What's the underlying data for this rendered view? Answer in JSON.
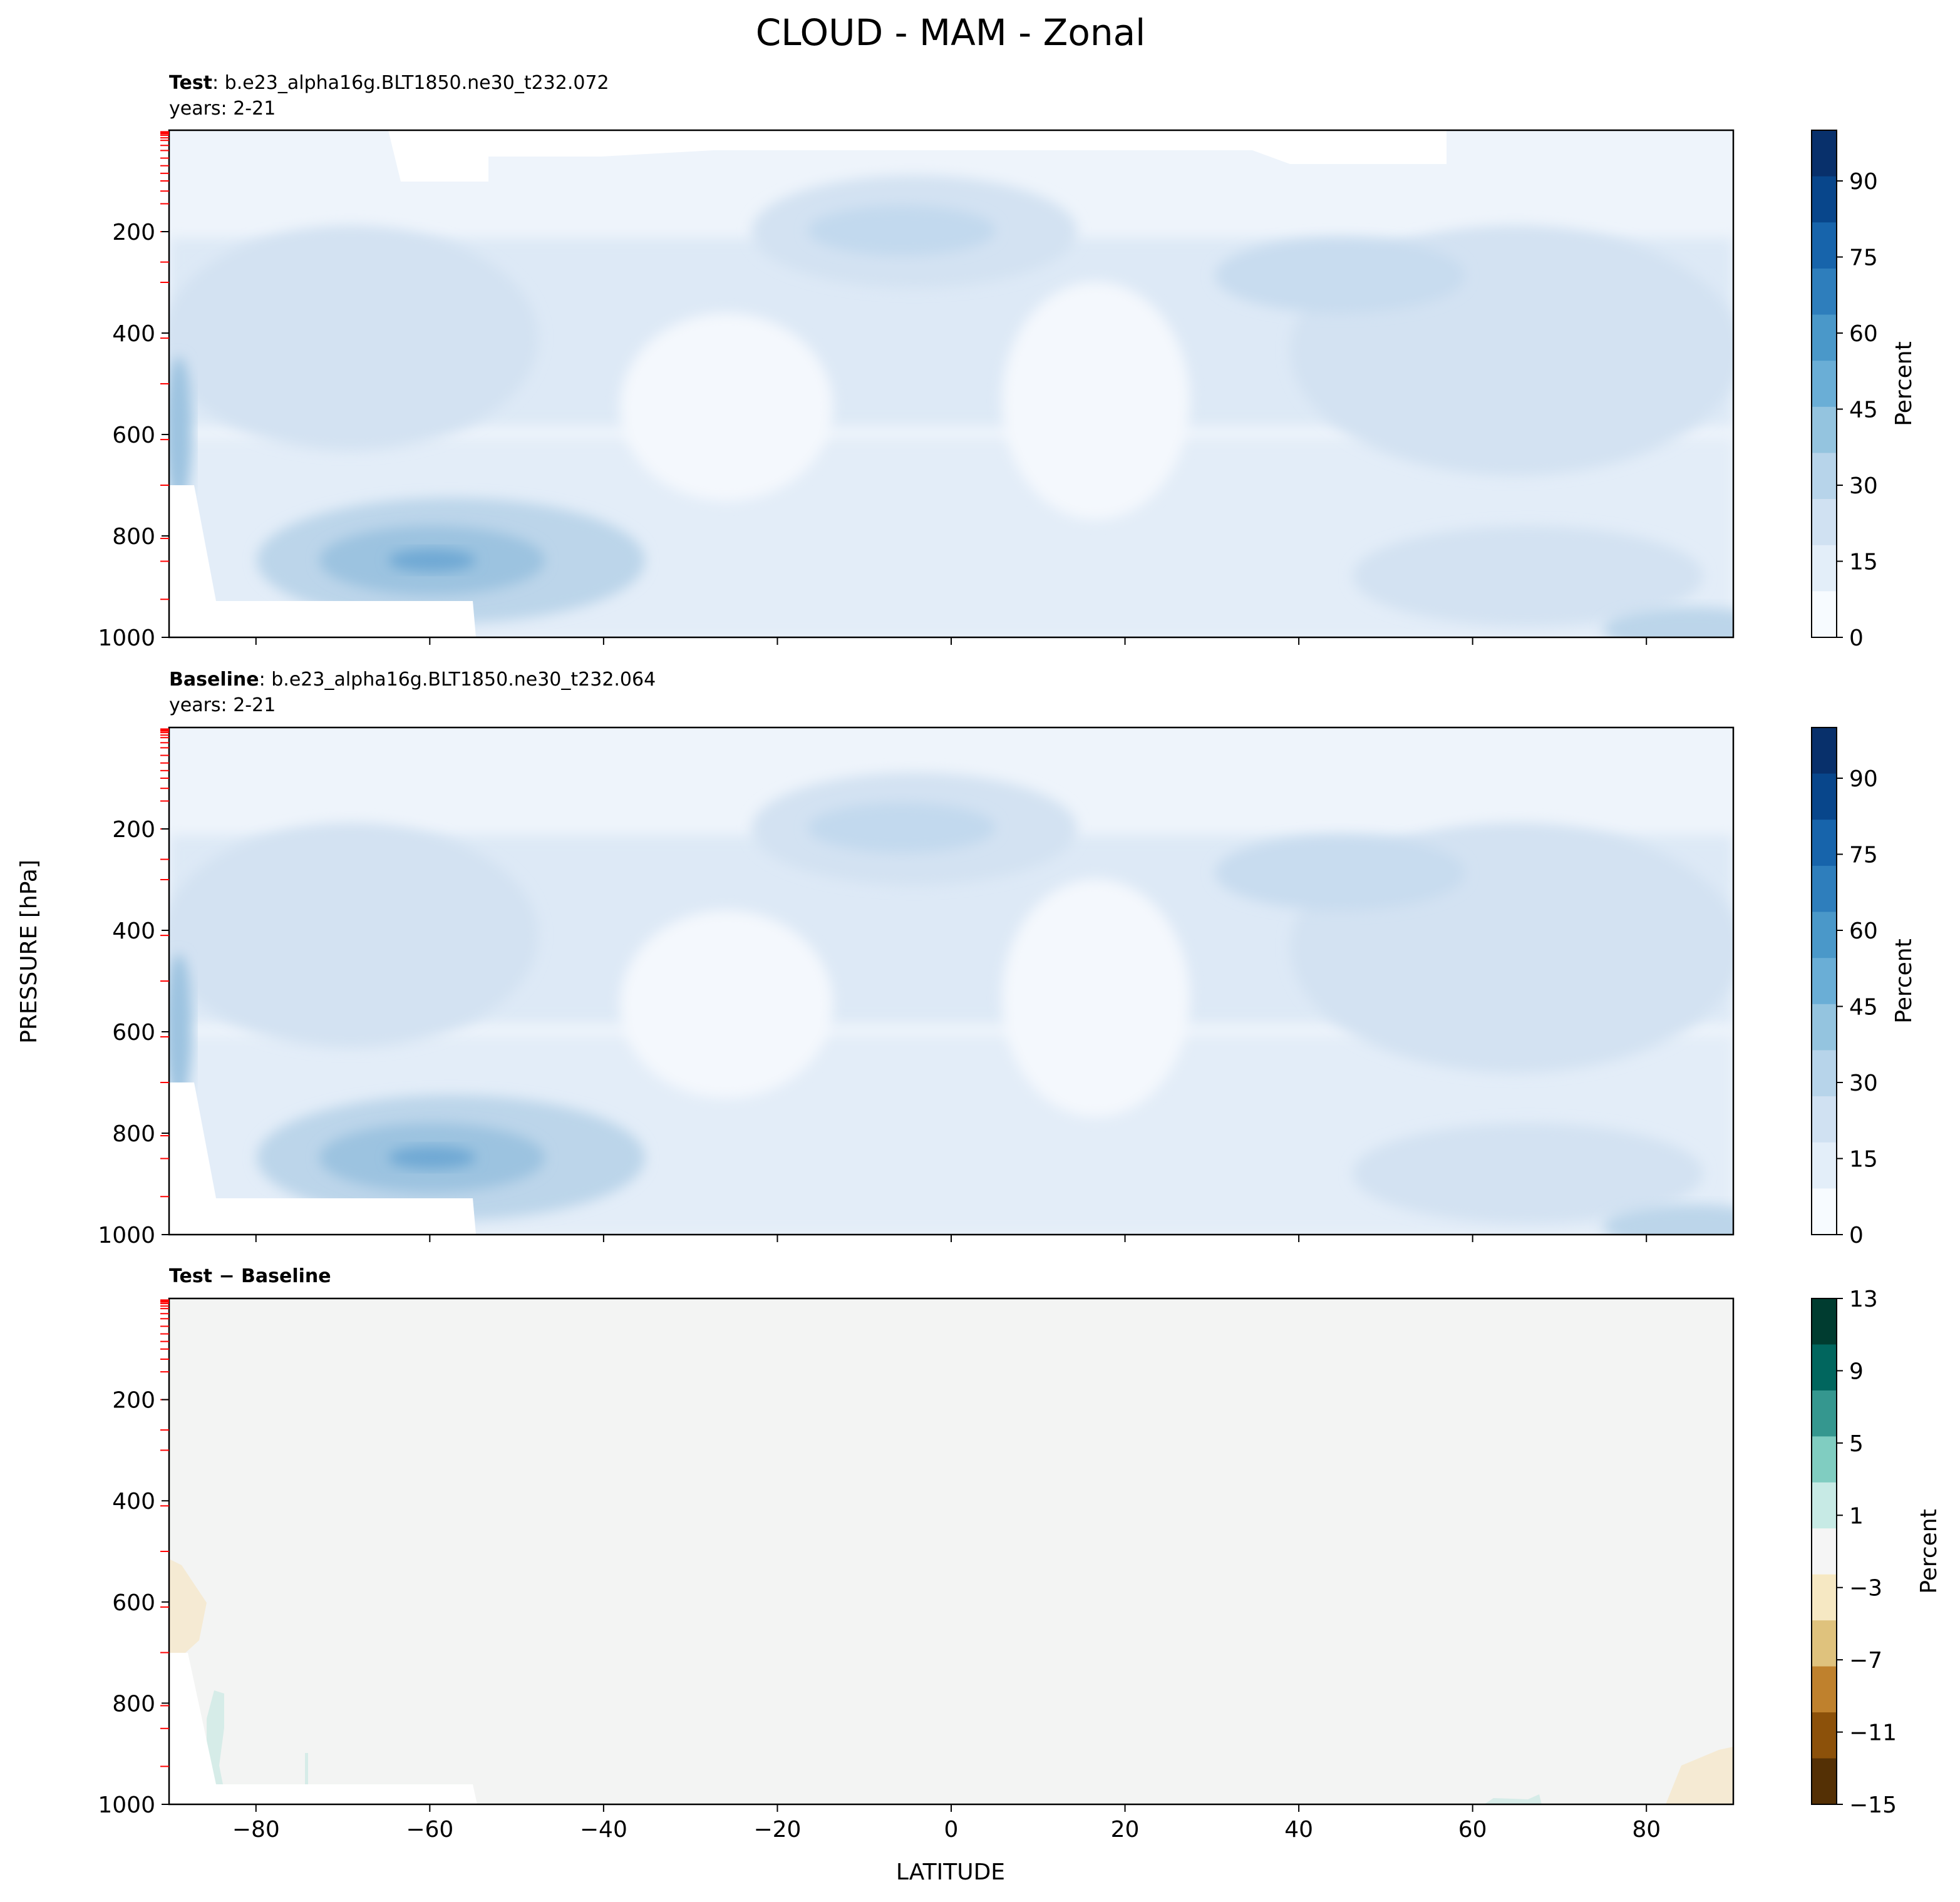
{
  "figure": {
    "title": "CLOUD - MAM - Zonal",
    "ylabel": "PRESSURE [hPa]",
    "xlabel": "LATITUDE"
  },
  "panels": [
    {
      "id": "test",
      "header_bold": "Test",
      "header_rest": ": b.e23_alpha16g.BLT1850.ne30_t232.072",
      "years": "years: 2-21"
    },
    {
      "id": "baseline",
      "header_bold": "Baseline",
      "header_rest": ": b.e23_alpha16g.BLT1850.ne30_t232.064",
      "years": "years: 2-21"
    },
    {
      "id": "diff",
      "header_bold": "Test − Baseline",
      "header_rest": "",
      "years": ""
    }
  ],
  "colorbars": [
    {
      "label": "Percent",
      "ticks": [
        "0",
        "15",
        "30",
        "45",
        "60",
        "75",
        "90"
      ],
      "colors": [
        "#f7fbff",
        "#e3eef9",
        "#d0e1f2",
        "#b7d4ea",
        "#94c4df",
        "#6aaed6",
        "#4a98c9",
        "#2e7ebc",
        "#1764ab",
        "#08468b",
        "#08306b"
      ]
    },
    {
      "label": "Percent",
      "ticks": [
        "0",
        "15",
        "30",
        "45",
        "60",
        "75",
        "90"
      ],
      "colors": [
        "#f7fbff",
        "#e3eef9",
        "#d0e1f2",
        "#b7d4ea",
        "#94c4df",
        "#6aaed6",
        "#4a98c9",
        "#2e7ebc",
        "#1764ab",
        "#08468b",
        "#08306b"
      ]
    },
    {
      "label": "Percent",
      "ticks": [
        "13",
        "9",
        "5",
        "1",
        "−3",
        "−7",
        "−11",
        "−15"
      ],
      "colors": [
        "#003c30",
        "#01665e",
        "#35978f",
        "#80cdc1",
        "#c7eae5",
        "#f5f5f5",
        "#f6e8c3",
        "#dfc27d",
        "#bf812d",
        "#8c510a",
        "#543005"
      ]
    }
  ],
  "colors": {
    "field_top": "#eef4fb",
    "field_light": "#e3edf8",
    "field_mid": "#d3e2f2",
    "field_deep": "#bcd5ea",
    "field_core": "#9cc3e0",
    "field_max": "#6fa9d4",
    "diff_bg": "#f3f4f3",
    "diff_neg": "#f5ead3",
    "diff_pos": "#d6ece8",
    "model_level_marks": "#ff0000"
  },
  "chart_data": {
    "type": "heatmap",
    "title": "CLOUD - MAM - Zonal",
    "xlabel": "LATITUDE",
    "ylabel": "PRESSURE [hPa]",
    "x_ticks": [
      -80,
      -60,
      -40,
      -20,
      0,
      20,
      40,
      60,
      80
    ],
    "x_tick_labels": [
      "−80",
      "−60",
      "−40",
      "−20",
      "0",
      "20",
      "40",
      "60",
      "80"
    ],
    "y_ticks": [
      200,
      400,
      600,
      800,
      1000
    ],
    "xlim": [
      -90,
      90
    ],
    "ylim": [
      1000,
      0
    ],
    "panels": [
      {
        "name": "Test",
        "case": "b.e23_alpha16g.BLT1850.ne30_t232.072",
        "years": "2-21",
        "units": "Percent",
        "levels": [
          0,
          15,
          30,
          45,
          60,
          75,
          90,
          100
        ],
        "features": [
          {
            "feature": "southern low-level maximum",
            "lat": -60,
            "pressure": 850,
            "value": 45
          },
          {
            "feature": "tropical upper maximum",
            "lat": -5,
            "pressure": 200,
            "value": 25
          },
          {
            "feature": "northern mid-level maximum",
            "lat": 40,
            "pressure": 300,
            "value": 22
          },
          {
            "feature": "subtropical minimum",
            "lat": -25,
            "pressure": 550,
            "value": 3
          },
          {
            "feature": "subtropical minimum",
            "lat": 20,
            "pressure": 500,
            "value": 3
          }
        ]
      },
      {
        "name": "Baseline",
        "case": "b.e23_alpha16g.BLT1850.ne30_t232.064",
        "years": "2-21",
        "units": "Percent",
        "levels": [
          0,
          15,
          30,
          45,
          60,
          75,
          90,
          100
        ],
        "features": [
          {
            "feature": "southern low-level maximum",
            "lat": -60,
            "pressure": 850,
            "value": 45
          },
          {
            "feature": "tropical upper maximum",
            "lat": -5,
            "pressure": 200,
            "value": 25
          },
          {
            "feature": "northern mid-level maximum",
            "lat": 40,
            "pressure": 300,
            "value": 22
          }
        ]
      },
      {
        "name": "Test − Baseline",
        "units": "Percent",
        "levels": [
          -15,
          -11,
          -7,
          -3,
          1,
          5,
          9,
          13
        ],
        "features": [
          {
            "feature": "negative difference",
            "lat": -88,
            "pressure": 400,
            "value": -2
          },
          {
            "feature": "positive difference",
            "lat": -83,
            "pressure": 800,
            "value": 2
          },
          {
            "feature": "negative difference",
            "lat": 87,
            "pressure": 950,
            "value": -2
          },
          {
            "feature": "positive difference",
            "lat": 65,
            "pressure": 995,
            "value": 2
          }
        ]
      }
    ]
  }
}
